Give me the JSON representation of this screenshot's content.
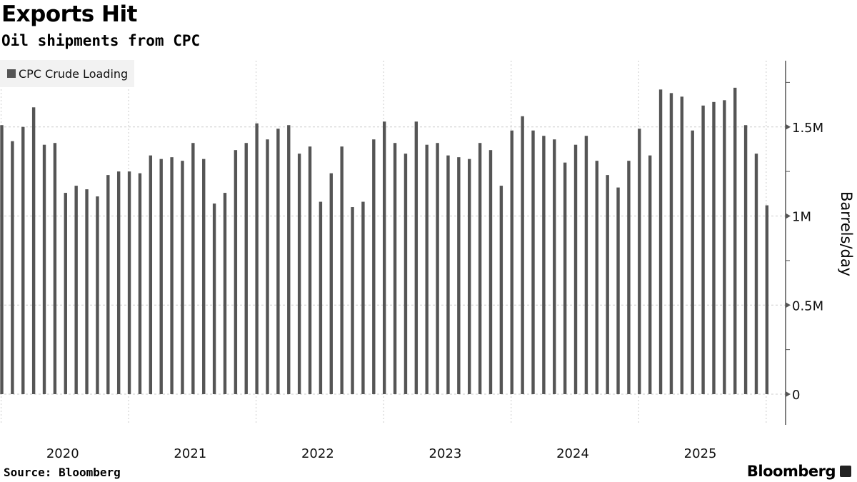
{
  "title": "Exports Hit",
  "subtitle": "Oil shipments from CPC",
  "source": "Source: Bloomberg",
  "brand": "Bloomberg",
  "chart_data": {
    "type": "bar",
    "title": "Exports Hit",
    "subtitle": "Oil shipments from CPC",
    "ylabel": "Barrels/day",
    "xlabel": "",
    "ylim": [
      0,
      1.87
    ],
    "y_unit": "million barrels/day",
    "yticks": [
      {
        "value": 0,
        "label": "0"
      },
      {
        "value": 0.5,
        "label": "0.5M"
      },
      {
        "value": 1,
        "label": "1M"
      },
      {
        "value": 1.5,
        "label": "1.5M"
      }
    ],
    "year_labels": [
      "2020",
      "2021",
      "2022",
      "2023",
      "2024",
      "2025"
    ],
    "legend": {
      "position": "top-left"
    },
    "grid": true,
    "bar_color": "#555555",
    "series": [
      {
        "name": "CPC Crude Loading",
        "categories": [
          "2020-01",
          "2020-02",
          "2020-03",
          "2020-04",
          "2020-05",
          "2020-06",
          "2020-07",
          "2020-08",
          "2020-09",
          "2020-10",
          "2020-11",
          "2020-12",
          "2021-01",
          "2021-02",
          "2021-03",
          "2021-04",
          "2021-05",
          "2021-06",
          "2021-07",
          "2021-08",
          "2021-09",
          "2021-10",
          "2021-11",
          "2021-12",
          "2022-01",
          "2022-02",
          "2022-03",
          "2022-04",
          "2022-05",
          "2022-06",
          "2022-07",
          "2022-08",
          "2022-09",
          "2022-10",
          "2022-11",
          "2022-12",
          "2023-01",
          "2023-02",
          "2023-03",
          "2023-04",
          "2023-05",
          "2023-06",
          "2023-07",
          "2023-08",
          "2023-09",
          "2023-10",
          "2023-11",
          "2023-12",
          "2024-01",
          "2024-02",
          "2024-03",
          "2024-04",
          "2024-05",
          "2024-06",
          "2024-07",
          "2024-08",
          "2024-09",
          "2024-10",
          "2024-11",
          "2024-12",
          "2025-01",
          "2025-02",
          "2025-03",
          "2025-04",
          "2025-05",
          "2025-06",
          "2025-07",
          "2025-08",
          "2025-09",
          "2025-10",
          "2025-11",
          "2025-12",
          "2026-01"
        ],
        "values": [
          1.51,
          1.42,
          1.5,
          1.61,
          1.4,
          1.41,
          1.13,
          1.17,
          1.15,
          1.11,
          1.23,
          1.25,
          1.25,
          1.24,
          1.34,
          1.32,
          1.33,
          1.31,
          1.41,
          1.32,
          1.07,
          1.13,
          1.37,
          1.41,
          1.52,
          1.43,
          1.49,
          1.51,
          1.35,
          1.39,
          1.08,
          1.24,
          1.39,
          1.05,
          1.08,
          1.43,
          1.53,
          1.41,
          1.35,
          1.53,
          1.4,
          1.41,
          1.34,
          1.33,
          1.32,
          1.41,
          1.37,
          1.17,
          1.48,
          1.56,
          1.48,
          1.45,
          1.43,
          1.3,
          1.4,
          1.45,
          1.31,
          1.23,
          1.16,
          1.31,
          1.49,
          1.34,
          1.71,
          1.69,
          1.67,
          1.48,
          1.62,
          1.64,
          1.65,
          1.72,
          1.51,
          1.35,
          1.06
        ]
      }
    ]
  }
}
